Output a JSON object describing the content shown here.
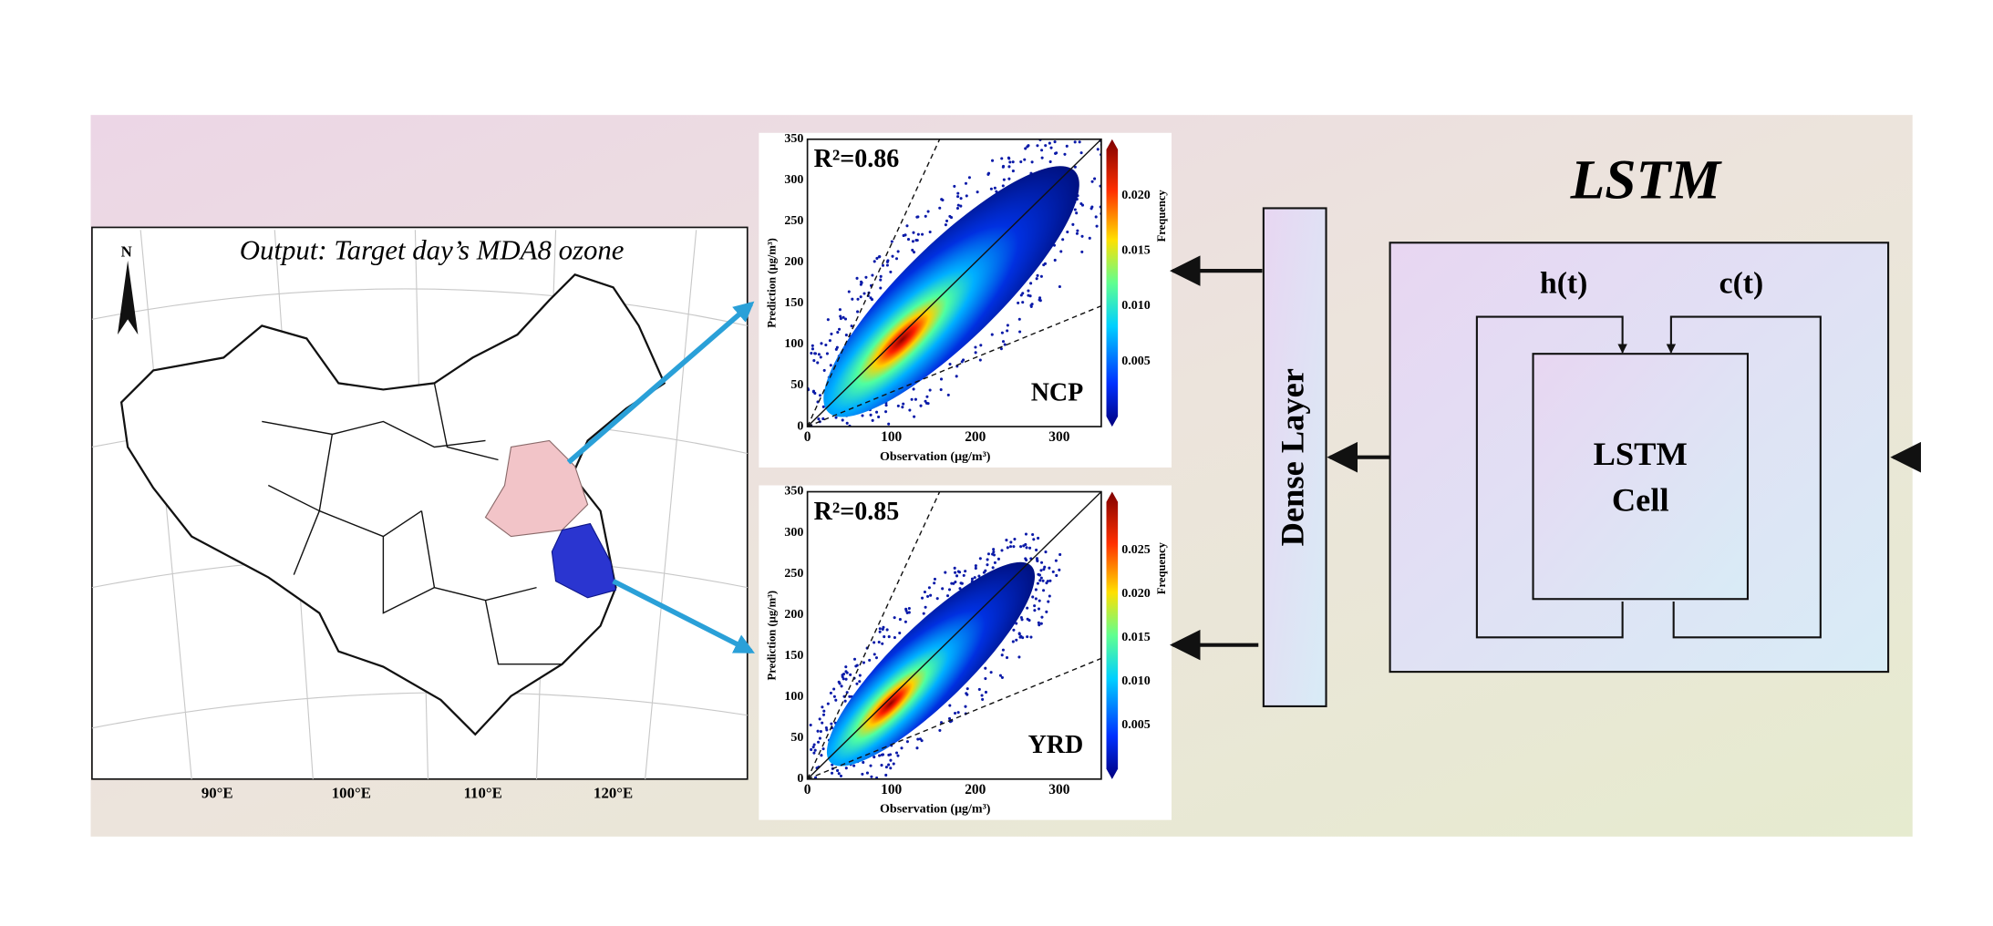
{
  "map": {
    "title": "Output: Target day’s MDA8 ozone",
    "north": "N",
    "lon_labels": [
      "90°E",
      "100°E",
      "110°E",
      "120°E"
    ]
  },
  "scatter_plots": [
    {
      "r2": "R²=0.86",
      "region": "NCP",
      "y_label": "Prediction (μg/m³)",
      "x_label": "Observation (μg/m³)",
      "yticks": [
        0,
        50,
        100,
        150,
        200,
        250,
        300,
        350
      ],
      "xticks": [
        0,
        100,
        200,
        300
      ],
      "colorbar_label": "Frequency",
      "colorbar_ticks": [
        "0.005",
        "0.010",
        "0.015",
        "0.020"
      ]
    },
    {
      "r2": "R²=0.85",
      "region": "YRD",
      "y_label": "Prediction (μg/m³)",
      "x_label": "Observation (μg/m³)",
      "yticks": [
        0,
        50,
        100,
        150,
        200,
        250,
        300,
        350
      ],
      "xticks": [
        0,
        100,
        200,
        300
      ],
      "colorbar_label": "Frequency",
      "colorbar_ticks": [
        "0.005",
        "0.010",
        "0.015",
        "0.020",
        "0.025"
      ]
    }
  ],
  "dense_layer": "Dense Layer",
  "lstm": {
    "title": "LSTM",
    "h": "h(t)",
    "c": "c(t)",
    "cell": [
      "LSTM",
      "Cell"
    ]
  }
}
